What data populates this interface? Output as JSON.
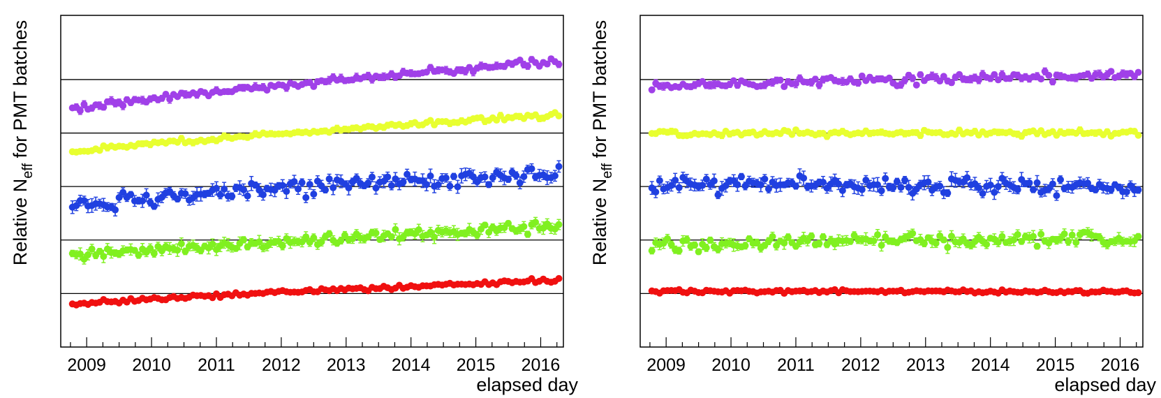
{
  "figure": {
    "panels": [
      "left",
      "right"
    ]
  },
  "colors": {
    "purple": "#a040e8",
    "yellow": "#e8ff30",
    "blue": "#2040e0",
    "green": "#80f020",
    "red": "#f01010",
    "axis": "#000000",
    "reference_line": "#000000"
  },
  "chart_data": [
    {
      "type": "scatter",
      "panel": "left",
      "title": "",
      "xlabel": "elapsed day",
      "ylabel_main": "Relative N",
      "ylabel_sub": "eff",
      "ylabel_rest": " for PMT batches",
      "x_tick_labels": [
        "2009",
        "2010",
        "2011",
        "2012",
        "2013",
        "2014",
        "2015",
        "2016"
      ],
      "x_tick_years": [
        2009,
        2010,
        2011,
        2012,
        2013,
        2014,
        2015,
        2016
      ],
      "xlim": [
        2008.6,
        2016.35
      ],
      "ylim": [
        0,
        6.2
      ],
      "reference_lines": [
        1,
        2,
        3,
        4,
        5
      ],
      "x_start": 2008.78,
      "x_step": 0.06,
      "series": [
        {
          "name": "purple batch",
          "color_key": "purple",
          "offset": 5,
          "start": -0.55,
          "end": 0.35,
          "amp": 0.05,
          "err": 0.05
        },
        {
          "name": "yellow batch",
          "color_key": "yellow",
          "offset": 4,
          "start": -0.35,
          "end": 0.35,
          "amp": 0.04,
          "err": 0.04
        },
        {
          "name": "blue batch",
          "color_key": "blue",
          "offset": 3,
          "start": -0.35,
          "end": 0.25,
          "amp": 0.12,
          "err": 0.09
        },
        {
          "name": "green batch",
          "color_key": "green",
          "offset": 2,
          "start": -0.3,
          "end": 0.25,
          "amp": 0.09,
          "err": 0.08
        },
        {
          "name": "red batch",
          "color_key": "red",
          "offset": 1,
          "start": -0.2,
          "end": 0.25,
          "amp": 0.03,
          "err": 0.03
        }
      ]
    },
    {
      "type": "scatter",
      "panel": "right",
      "title": "",
      "xlabel": "elapsed day",
      "ylabel_main": "Relative N",
      "ylabel_sub": "eff",
      "ylabel_rest": " for PMT batches",
      "x_tick_labels": [
        "2009",
        "2010",
        "2011",
        "2012",
        "2013",
        "2014",
        "2015",
        "2016"
      ],
      "x_tick_years": [
        2009,
        2010,
        2011,
        2012,
        2013,
        2014,
        2015,
        2016
      ],
      "xlim": [
        2008.6,
        2016.35
      ],
      "ylim": [
        0,
        6.2
      ],
      "reference_lines": [
        1,
        2,
        3,
        4,
        5
      ],
      "x_start": 2008.78,
      "x_step": 0.06,
      "series": [
        {
          "name": "purple batch",
          "color_key": "purple",
          "offset": 5,
          "start": -0.12,
          "end": 0.08,
          "amp": 0.07,
          "err": 0.05
        },
        {
          "name": "yellow batch",
          "color_key": "yellow",
          "offset": 4,
          "start": 0.0,
          "end": 0.0,
          "amp": 0.04,
          "err": 0.04
        },
        {
          "name": "blue batch",
          "color_key": "blue",
          "offset": 3,
          "start": 0.05,
          "end": 0.0,
          "amp": 0.14,
          "err": 0.09
        },
        {
          "name": "green batch",
          "color_key": "green",
          "offset": 2,
          "start": -0.1,
          "end": 0.05,
          "amp": 0.11,
          "err": 0.08
        },
        {
          "name": "red batch",
          "color_key": "red",
          "offset": 1,
          "start": 0.05,
          "end": 0.03,
          "amp": 0.03,
          "err": 0.03
        }
      ]
    }
  ]
}
